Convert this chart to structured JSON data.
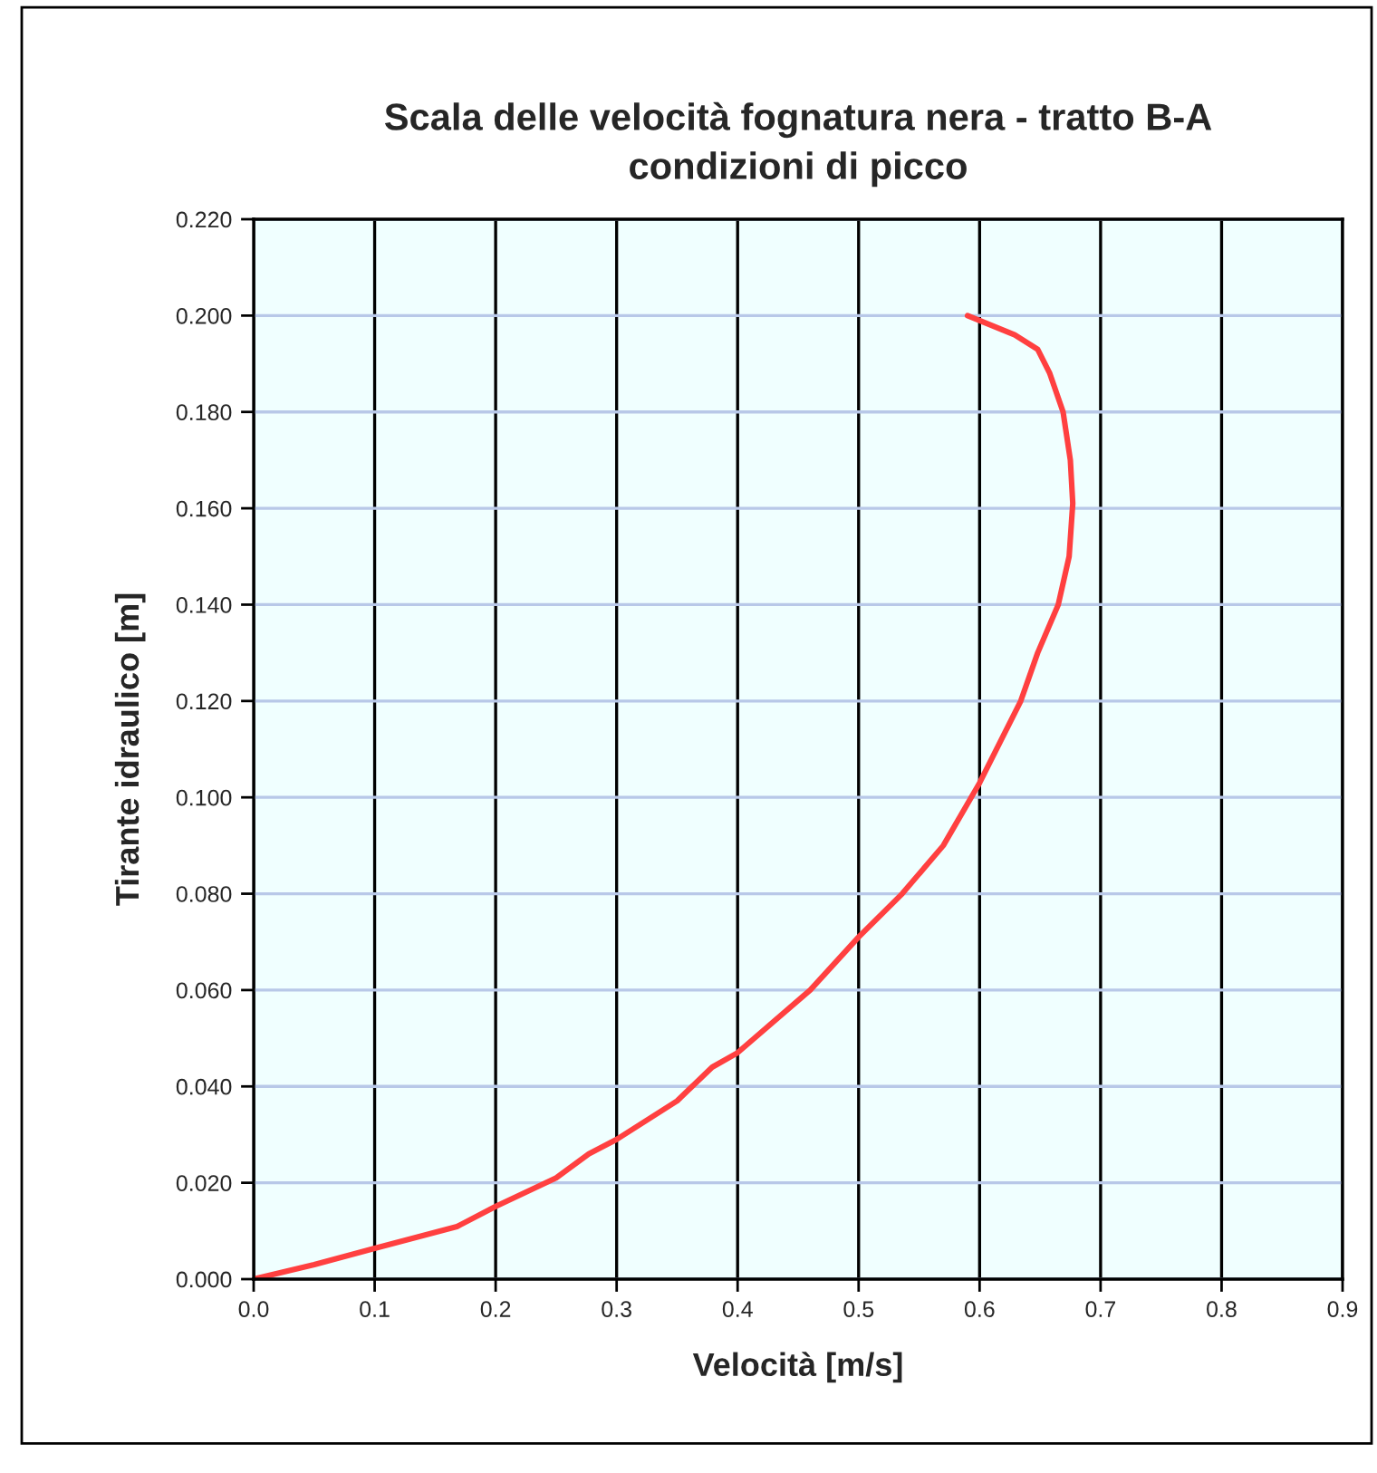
{
  "chart_data": {
    "type": "line",
    "title": "Scala delle velocità fognatura nera - tratto B-A\ncondizioni di picco",
    "xlabel": "Velocità [m/s]",
    "ylabel": "Tirante idraulico [m]",
    "xlim": [
      0,
      0.9
    ],
    "xticks": [
      {
        "value": 0,
        "label": "0.0"
      },
      0.1,
      0.2,
      0.3,
      0.4,
      0.5,
      0.6,
      0.7,
      0.8,
      0.9
    ],
    "ylim": [
      0,
      0.22
    ],
    "yticks": [
      {
        "value": 0,
        "label": "0.000"
      },
      {
        "value": 0.02,
        "label": "0.020"
      },
      {
        "value": 0.04,
        "label": "0.040"
      },
      {
        "value": 0.06,
        "label": "0.060"
      },
      {
        "value": 0.08,
        "label": "0.080"
      },
      {
        "value": 0.1,
        "label": "0.100"
      },
      {
        "value": 0.12,
        "label": "0.120"
      },
      {
        "value": 0.14,
        "label": "0.140"
      },
      {
        "value": 0.16,
        "label": "0.160"
      },
      {
        "value": 0.18,
        "label": "0.180"
      },
      {
        "value": 0.2,
        "label": "0.200"
      },
      {
        "value": 0.22,
        "label": "0.220"
      }
    ],
    "grid": true,
    "series": [
      {
        "color": "#ff4040",
        "x": [
          0,
          0.05,
          0.1,
          0.168,
          0.2,
          0.25,
          0.277,
          0.3,
          0.35,
          0.379,
          0.4,
          0.46,
          0.5,
          0.536,
          0.57,
          0.6,
          0.634,
          0.648,
          0.665,
          0.674,
          0.677,
          0.675,
          0.669,
          0.658,
          0.648,
          0.629,
          0.59
        ],
        "values": [
          0,
          0.003,
          0.0064,
          0.0109,
          0.0151,
          0.021,
          0.026,
          0.029,
          0.037,
          0.044,
          0.047,
          0.06,
          0.071,
          0.08,
          0.09,
          0.103,
          0.12,
          0.13,
          0.14,
          0.15,
          0.161,
          0.17,
          0.18,
          0.188,
          0.193,
          0.196,
          0.2
        ]
      }
    ]
  }
}
